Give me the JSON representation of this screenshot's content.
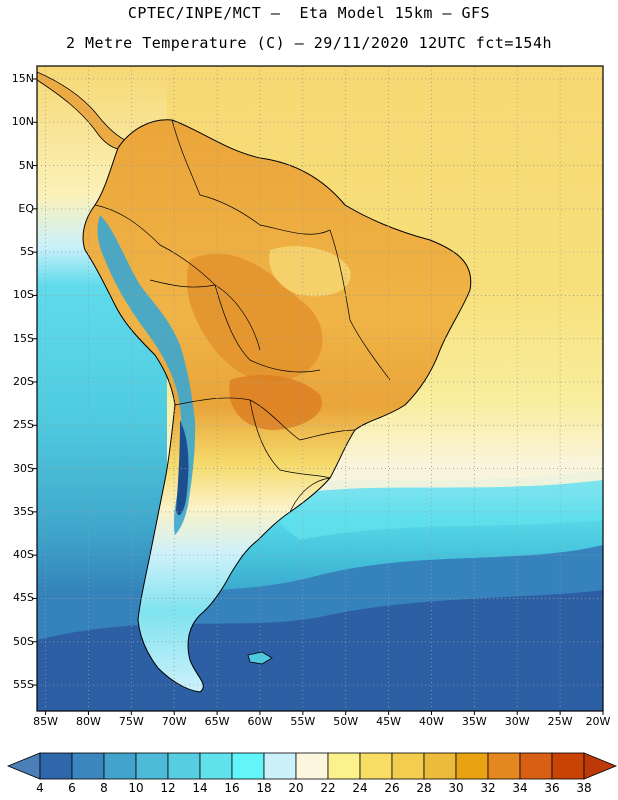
{
  "header": {
    "line1": "CPTEC/INPE/MCT –  Eta Model 15km – GFS",
    "line2": "2 Metre Temperature (C) – 29/11/2020 12UTC fct=154h"
  },
  "map": {
    "lat_labels": [
      "15N",
      "10N",
      "5N",
      "EQ",
      "5S",
      "10S",
      "15S",
      "20S",
      "25S",
      "30S",
      "35S",
      "40S",
      "45S",
      "50S",
      "55S"
    ],
    "lon_labels": [
      "85W",
      "80W",
      "75W",
      "70W",
      "65W",
      "60W",
      "55W",
      "50W",
      "45W",
      "40W",
      "35W",
      "30W",
      "25W",
      "20W"
    ],
    "lat_values": [
      15,
      10,
      5,
      0,
      -5,
      -10,
      -15,
      -20,
      -25,
      -30,
      -35,
      -40,
      -45,
      -50,
      -55
    ],
    "lon_values": [
      -85,
      -80,
      -75,
      -70,
      -65,
      -60,
      -55,
      -50,
      -45,
      -40,
      -35,
      -30,
      -25,
      -20
    ],
    "lat_range": [
      -58,
      16.5
    ],
    "lon_range": [
      -86,
      -20
    ]
  },
  "colorbar": {
    "labels": [
      "4",
      "6",
      "8",
      "10",
      "12",
      "14",
      "16",
      "18",
      "20",
      "22",
      "24",
      "26",
      "28",
      "30",
      "32",
      "34",
      "36",
      "38"
    ],
    "colors": [
      "#4c7fb8",
      "#2e68aa",
      "#3c86c0",
      "#42a4cc",
      "#4cbad8",
      "#56cde0",
      "#60e2ec",
      "#62f6fa",
      "#cbf1fb",
      "#fdf6df",
      "#fbf28e",
      "#f7dd63",
      "#f2cd4e",
      "#edbb3c",
      "#e9a312",
      "#e4871e",
      "#d86014",
      "#c94404",
      "#bd3a08"
    ]
  },
  "colors": {
    "ocean_cold": "#2e5fa4",
    "ocean_mid": "#3ba2c9",
    "ocean_cool": "#56d3e2",
    "ocean_pale": "#ccf1fa",
    "ocean_warm": "#f4d568",
    "land_hot": "#e7a23a",
    "andes": "#1d4e8e"
  }
}
